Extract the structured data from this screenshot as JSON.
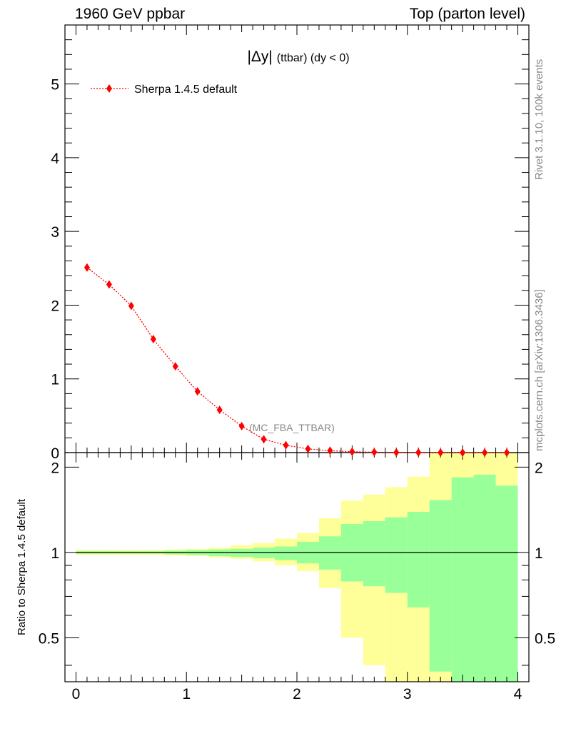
{
  "header": {
    "left": "1960 GeV ppbar",
    "right": "Top (parton level)"
  },
  "side_text": {
    "top": "Rivet 3.1.10,  100k events",
    "bottom": "mcplots.cern.ch [arXiv:1306.3436]"
  },
  "chart_data": [
    {
      "type": "line",
      "title_main": "|Δy|",
      "title_sub": "(ttbar) (dy < 0)",
      "annotation": "(MC_FBA_TTBAR)",
      "legend": {
        "label": "Sherpa 1.4.5 default",
        "placement": "top-left"
      },
      "xlim": [
        -0.1,
        4.1
      ],
      "ylim": [
        0,
        5.8
      ],
      "yticks": [
        0,
        1,
        2,
        3,
        4,
        5
      ],
      "ytick_labels": [
        "0",
        "1",
        "2",
        "3",
        "4",
        "5"
      ],
      "color": "#ff0000",
      "series": [
        {
          "name": "Sherpa 1.4.5 default",
          "x": [
            0.1,
            0.3,
            0.5,
            0.7,
            0.9,
            1.1,
            1.3,
            1.5,
            1.7,
            1.9,
            2.1,
            2.3,
            2.5,
            2.7,
            2.9,
            3.1,
            3.3,
            3.5,
            3.7,
            3.9
          ],
          "values": [
            2.51,
            2.28,
            1.99,
            1.54,
            1.17,
            0.83,
            0.58,
            0.36,
            0.18,
            0.1,
            0.05,
            0.025,
            0.012,
            0.006,
            0.003,
            0.0015,
            0.0008,
            0.0004,
            0.0002,
            0.0001
          ]
        }
      ]
    },
    {
      "type": "area",
      "ylabel": "Ratio to Sherpa 1.4.5 default",
      "xlim": [
        -0.1,
        4.1
      ],
      "ylim": [
        0.35,
        2.25
      ],
      "xticks": [
        0,
        1,
        2,
        3,
        4
      ],
      "xtick_labels": [
        "0",
        "1",
        "2",
        "3",
        "4"
      ],
      "yticks": [
        0.5,
        1,
        2
      ],
      "ytick_labels": [
        "0.5",
        "1",
        "2"
      ],
      "reference_line": 1,
      "bin_edges": [
        0,
        0.2,
        0.4,
        0.6,
        0.8,
        1.0,
        1.2,
        1.4,
        1.6,
        1.8,
        2.0,
        2.2,
        2.4,
        2.6,
        2.8,
        3.0,
        3.2,
        3.4,
        3.6,
        3.8,
        4.0
      ],
      "series": [
        {
          "name": "yellow band",
          "color": "#ffff99",
          "lower": [
            0.98,
            0.98,
            0.98,
            0.98,
            0.975,
            0.97,
            0.96,
            0.95,
            0.93,
            0.9,
            0.86,
            0.75,
            0.5,
            0.4,
            0.35,
            0.3,
            0.3,
            0.3,
            0.3,
            0.3
          ],
          "upper": [
            1.02,
            1.02,
            1.02,
            1.02,
            1.025,
            1.03,
            1.04,
            1.06,
            1.08,
            1.12,
            1.17,
            1.32,
            1.52,
            1.6,
            1.7,
            1.85,
            2.3,
            2.3,
            2.3,
            2.3
          ]
        },
        {
          "name": "green band",
          "color": "#99ff99",
          "lower": [
            0.99,
            0.99,
            0.99,
            0.99,
            0.985,
            0.98,
            0.97,
            0.965,
            0.955,
            0.94,
            0.915,
            0.87,
            0.79,
            0.76,
            0.72,
            0.64,
            0.38,
            0.3,
            0.3,
            0.3
          ],
          "upper": [
            1.01,
            1.01,
            1.01,
            1.01,
            1.015,
            1.02,
            1.025,
            1.03,
            1.04,
            1.05,
            1.09,
            1.14,
            1.26,
            1.29,
            1.33,
            1.39,
            1.53,
            1.84,
            1.88,
            1.72
          ]
        }
      ]
    }
  ]
}
